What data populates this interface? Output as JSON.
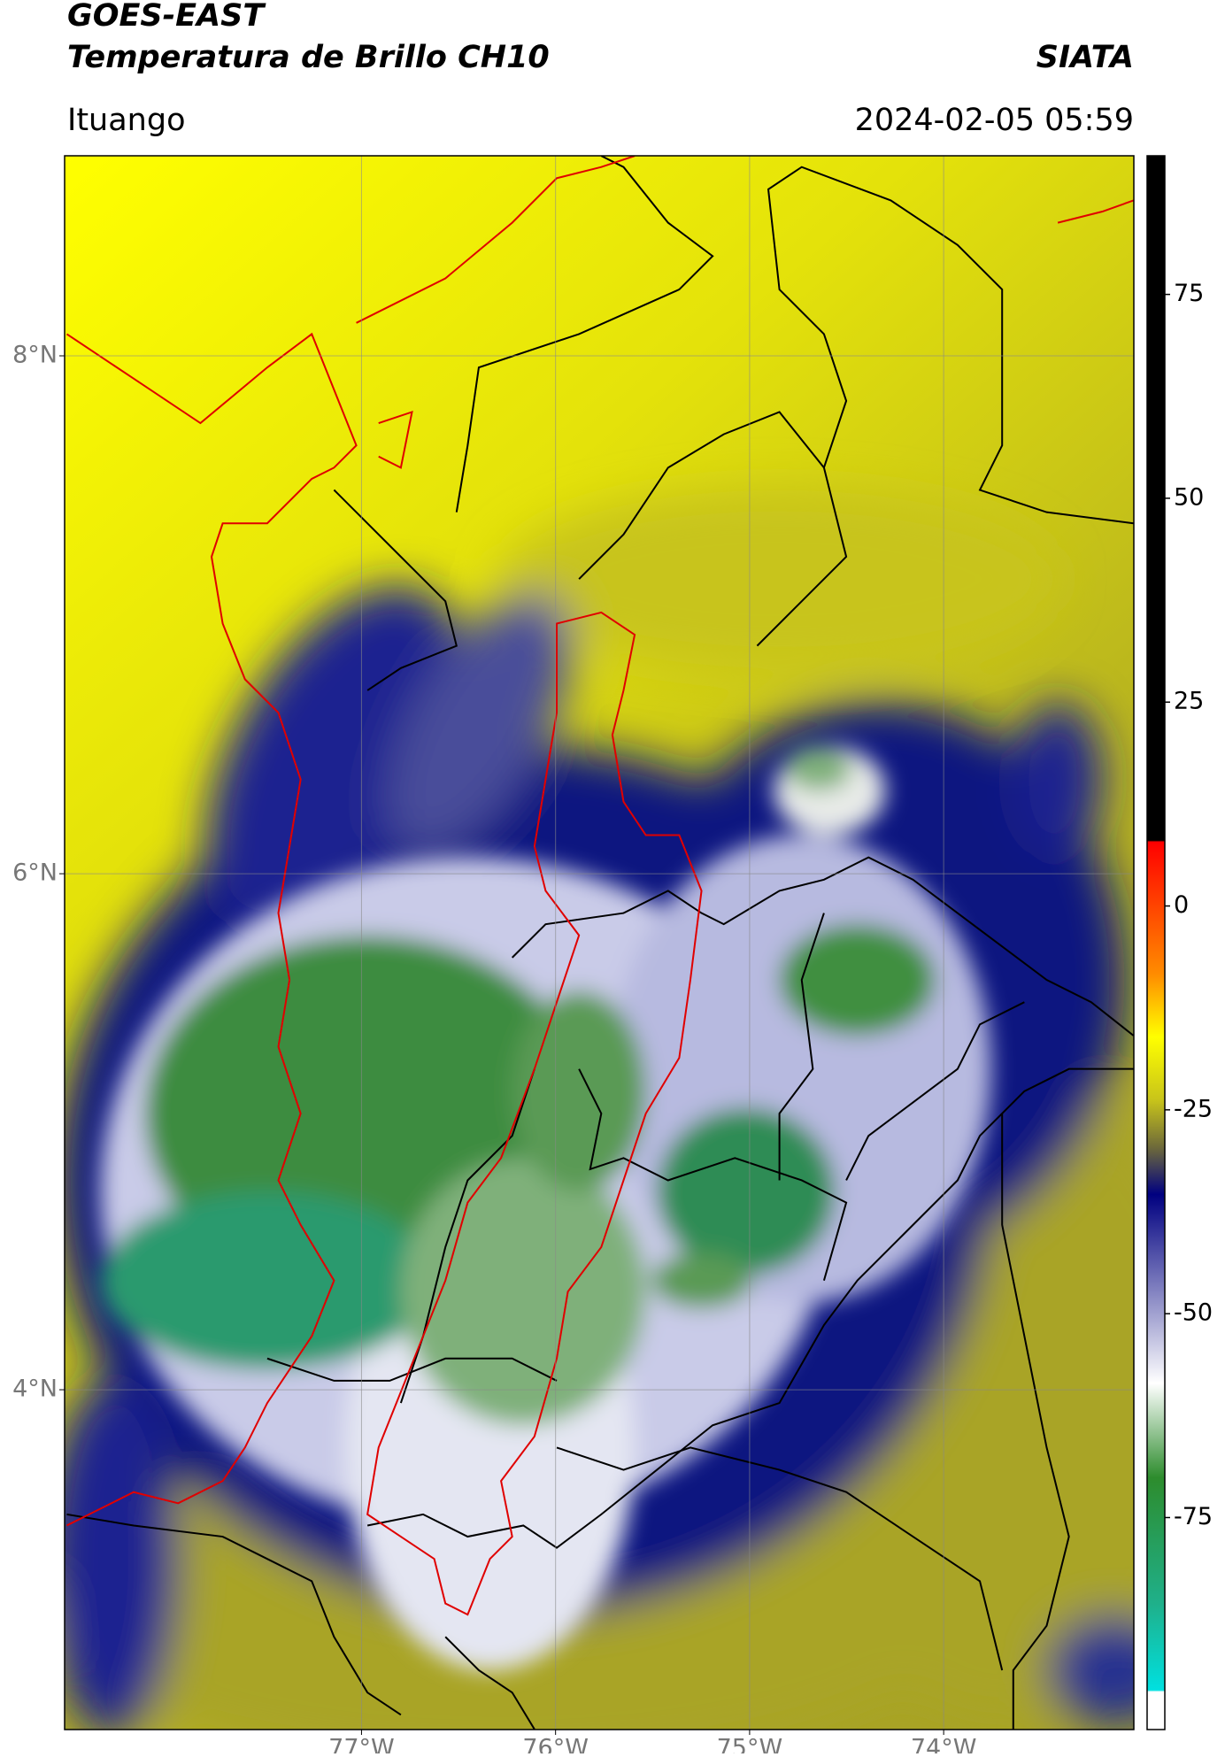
{
  "header": {
    "title": "GOES-EAST",
    "subtitle": "Temperatura de Brillo CH10",
    "source": "SIATA",
    "region": "Ituango",
    "datetime": "2024-02-05 05:59"
  },
  "map": {
    "latlim": [
      2.68,
      8.77
    ],
    "lonlim": [
      -78.53,
      -73.02
    ],
    "latticks": [
      {
        "value": 8,
        "label": "8°N"
      },
      {
        "value": 6,
        "label": "6°N"
      },
      {
        "value": 4,
        "label": "4°N"
      }
    ],
    "lonticks": [
      {
        "value": -77,
        "label": "77°W"
      },
      {
        "value": -76,
        "label": "76°W"
      },
      {
        "value": -75,
        "label": "75°W"
      },
      {
        "value": -74,
        "label": "74°W"
      }
    ],
    "grid": true
  },
  "colorbar": {
    "lim": [
      -101,
      92
    ],
    "ticks": [
      75,
      50,
      25,
      0,
      -25,
      -50,
      -75
    ]
  }
}
